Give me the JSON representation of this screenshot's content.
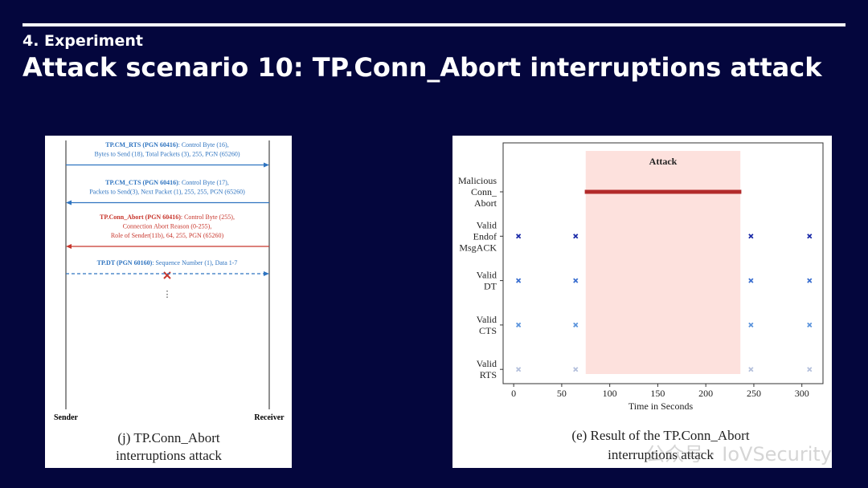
{
  "slide": {
    "section": "4. Experiment",
    "title": "Attack scenario 10: TP.Conn_Abort interruptions attack"
  },
  "sequence_diagram": {
    "sender": "Sender",
    "receiver": "Receiver",
    "messages": [
      {
        "name": "TP.CM_RTS (PGN 60416)",
        "lines": [
          ": Control Byte (16),",
          "Bytes to Send (18), Total Packets (3), 255, PGN (65260)"
        ],
        "direction": "right",
        "style": "solid",
        "color": "#2f74c0"
      },
      {
        "name": "TP.CM_CTS (PGN 60416)",
        "lines": [
          ": Control Byte (17),",
          "Packets to Send(3), Next Packet (1), 255, 255, PGN (65260)"
        ],
        "direction": "left",
        "style": "solid",
        "color": "#2f74c0"
      },
      {
        "name": "TP.Conn_Abort (PGN 60416)",
        "lines": [
          ": Control Byte (255),",
          "Connection Abort Reason (0-255),",
          "Role of Sender(11b), 64, 255, PGN (65260)"
        ],
        "direction": "left",
        "style": "solid",
        "color": "#c8362c"
      },
      {
        "name": "TP.DT (PGN 60160)",
        "lines": [
          ": Sequence Number (1), Data 1-7"
        ],
        "direction": "right",
        "style": "dashed",
        "color": "#2f74c0"
      }
    ],
    "continuation": "⋮",
    "caption": [
      "(j) TP.Conn_Abort",
      "interruptions attack"
    ]
  },
  "chart_data": {
    "type": "scatter",
    "categories": [
      [
        "Malicious",
        "Conn_",
        "Abort"
      ],
      [
        "Valid",
        "Endof",
        "MsgACK"
      ],
      [
        "Valid",
        "DT"
      ],
      [
        "Valid",
        "CTS"
      ],
      [
        "Valid",
        "RTS"
      ]
    ],
    "series": [
      {
        "style": "segment",
        "color": "#b22a2a",
        "x": [
          74,
          237
        ]
      },
      {
        "style": "points",
        "color": "#1a2aa8",
        "x": [
          5,
          64.5,
          247,
          308
        ]
      },
      {
        "style": "points",
        "color": "#3b6fd0",
        "x": [
          5,
          64.5,
          247,
          308
        ]
      },
      {
        "style": "points",
        "color": "#5a93dc",
        "x": [
          5,
          64.5,
          247,
          308
        ]
      },
      {
        "style": "points",
        "color": "#b4c0dc",
        "x": [
          5,
          64.5,
          247,
          308
        ]
      }
    ],
    "attack_region": {
      "label": "Attack",
      "x": [
        75,
        236
      ],
      "color": "#fde1dd"
    },
    "xlim": [
      -11,
      322
    ],
    "xticks": [
      0,
      50,
      100,
      150,
      200,
      250,
      300
    ],
    "xlabel": "Time in Seconds",
    "caption": [
      "(e) Result of the TP.Conn_Abort",
      "interruptions attack"
    ]
  },
  "watermark": "公众号 · IoVSecurity"
}
